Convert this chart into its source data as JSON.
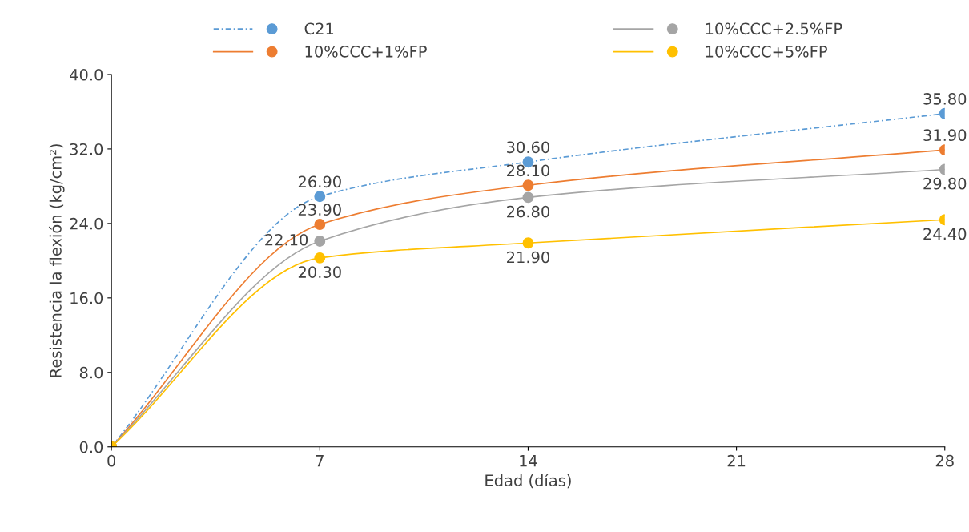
{
  "chart_data": {
    "type": "line",
    "xlabel": "Edad (días)",
    "ylabel": "Resistencia la flexión (kg/cm²)",
    "x": [
      0,
      7,
      14,
      28
    ],
    "series": [
      {
        "name": "C21",
        "color": "#5b9bd5",
        "line_style": "dashed",
        "values": [
          0,
          26.9,
          30.6,
          35.8
        ],
        "value_labels": [
          null,
          "26.90",
          "30.60",
          "35.80"
        ]
      },
      {
        "name": "10%CCC+1%FP",
        "color": "#ed7d31",
        "line_style": "solid",
        "values": [
          0,
          23.9,
          28.1,
          31.9
        ],
        "value_labels": [
          null,
          "23.90",
          "28.10",
          "31.90"
        ]
      },
      {
        "name": "10%CCC+2.5%FP",
        "color": "#a5a5a5",
        "line_style": "solid",
        "values": [
          0,
          22.1,
          26.8,
          29.8
        ],
        "value_labels": [
          null,
          "22.10",
          "26.80",
          "29.80"
        ]
      },
      {
        "name": "10%CCC+5%FP",
        "color": "#ffc000",
        "line_style": "solid",
        "values": [
          0,
          20.3,
          21.9,
          24.4
        ],
        "value_labels": [
          null,
          "20.30",
          "21.90",
          "24.40"
        ]
      }
    ],
    "xlim": [
      0,
      28
    ],
    "xticks": [
      0,
      7,
      14,
      21,
      28
    ],
    "ylim": [
      0,
      40
    ],
    "yticks": [
      {
        "value": 0,
        "label": "0.0"
      },
      {
        "value": 8,
        "label": "8.0"
      },
      {
        "value": 16,
        "label": "16.0"
      },
      {
        "value": 24,
        "label": "24.0"
      },
      {
        "value": 32,
        "label": "32.0"
      },
      {
        "value": 40,
        "label": "40.0"
      }
    ],
    "marker": "circle",
    "grid": false,
    "legend": "top"
  }
}
